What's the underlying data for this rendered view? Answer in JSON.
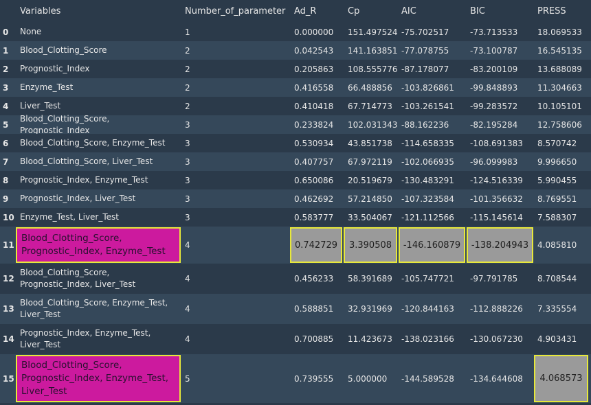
{
  "table": {
    "columns": [
      "Variables",
      "Number_of_parameter",
      "Ad_R",
      "Cp",
      "AIC",
      "BIC",
      "PRESS"
    ],
    "rows": [
      {
        "idx": "0",
        "vars": [
          "None"
        ],
        "n": "1",
        "adr": "0.000000",
        "cp": "151.497524",
        "aic": "-75.702517",
        "bic": "-73.713533",
        "press": "18.069533"
      },
      {
        "idx": "1",
        "vars": [
          "Blood_Clotting_Score"
        ],
        "n": "2",
        "adr": "0.042543",
        "cp": "141.163851",
        "aic": "-77.078755",
        "bic": "-73.100787",
        "press": "16.545135"
      },
      {
        "idx": "2",
        "vars": [
          "Prognostic_Index"
        ],
        "n": "2",
        "adr": "0.205863",
        "cp": "108.555776",
        "aic": "-87.178077",
        "bic": "-83.200109",
        "press": "13.688089"
      },
      {
        "idx": "3",
        "vars": [
          "Enzyme_Test"
        ],
        "n": "2",
        "adr": "0.416558",
        "cp": "66.488856",
        "aic": "-103.826861",
        "bic": "-99.848893",
        "press": "11.304663"
      },
      {
        "idx": "4",
        "vars": [
          "Liver_Test"
        ],
        "n": "2",
        "adr": "0.410418",
        "cp": "67.714773",
        "aic": "-103.261541",
        "bic": "-99.283572",
        "press": "10.105101"
      },
      {
        "idx": "5",
        "vars": [
          "Blood_Clotting_Score, Prognostic_Index"
        ],
        "n": "3",
        "adr": "0.233824",
        "cp": "102.031343",
        "aic": "-88.162236",
        "bic": "-82.195284",
        "press": "12.758606"
      },
      {
        "idx": "6",
        "vars": [
          "Blood_Clotting_Score, Enzyme_Test"
        ],
        "n": "3",
        "adr": "0.530934",
        "cp": "43.851738",
        "aic": "-114.658335",
        "bic": "-108.691383",
        "press": "8.570742"
      },
      {
        "idx": "7",
        "vars": [
          "Blood_Clotting_Score, Liver_Test"
        ],
        "n": "3",
        "adr": "0.407757",
        "cp": "67.972119",
        "aic": "-102.066935",
        "bic": "-96.099983",
        "press": "9.996650"
      },
      {
        "idx": "8",
        "vars": [
          "Prognostic_Index, Enzyme_Test"
        ],
        "n": "3",
        "adr": "0.650086",
        "cp": "20.519679",
        "aic": "-130.483291",
        "bic": "-124.516339",
        "press": "5.990455"
      },
      {
        "idx": "9",
        "vars": [
          "Prognostic_Index, Liver_Test"
        ],
        "n": "3",
        "adr": "0.462692",
        "cp": "57.214850",
        "aic": "-107.323584",
        "bic": "-101.356632",
        "press": "8.769551"
      },
      {
        "idx": "10",
        "vars": [
          "Enzyme_Test, Liver_Test"
        ],
        "n": "3",
        "adr": "0.583777",
        "cp": "33.504067",
        "aic": "-121.112566",
        "bic": "-115.145614",
        "press": "7.588307"
      },
      {
        "idx": "11",
        "vars": [
          "Blood_Clotting_Score,",
          "Prognostic_Index, Enzyme_Test"
        ],
        "n": "4",
        "adr": "0.742729",
        "cp": "3.390508",
        "aic": "-146.160879",
        "bic": "-138.204943",
        "press": "4.085810"
      },
      {
        "idx": "12",
        "vars": [
          "Blood_Clotting_Score,",
          "Prognostic_Index, Liver_Test"
        ],
        "n": "4",
        "adr": "0.456233",
        "cp": "58.391689",
        "aic": "-105.747721",
        "bic": "-97.791785",
        "press": "8.708544"
      },
      {
        "idx": "13",
        "vars": [
          "Blood_Clotting_Score, Enzyme_Test,",
          "Liver_Test"
        ],
        "n": "4",
        "adr": "0.588851",
        "cp": "32.931969",
        "aic": "-120.844163",
        "bic": "-112.888226",
        "press": "7.335554"
      },
      {
        "idx": "14",
        "vars": [
          "Prognostic_Index, Enzyme_Test,",
          "Liver_Test"
        ],
        "n": "4",
        "adr": "0.700885",
        "cp": "11.423673",
        "aic": "-138.023166",
        "bic": "-130.067230",
        "press": "4.903431"
      },
      {
        "idx": "15",
        "vars": [
          "Blood_Clotting_Score,",
          "Prognostic_Index, Enzyme_Test,",
          "Liver_Test"
        ],
        "n": "5",
        "adr": "0.739555",
        "cp": "5.000000",
        "aic": "-144.589528",
        "bic": "-134.644608",
        "press": "4.068573"
      }
    ],
    "highlights": {
      "11": [
        "vars",
        "adr",
        "cp",
        "aic",
        "bic"
      ],
      "15": [
        "vars",
        "press"
      ]
    },
    "colors": {
      "background": "#2b3a4a",
      "row_alt": "#35485a",
      "highlight_variables": "#cc1a9e",
      "highlight_values": "#9a9a9a",
      "highlight_border": "#e7e83a"
    }
  }
}
